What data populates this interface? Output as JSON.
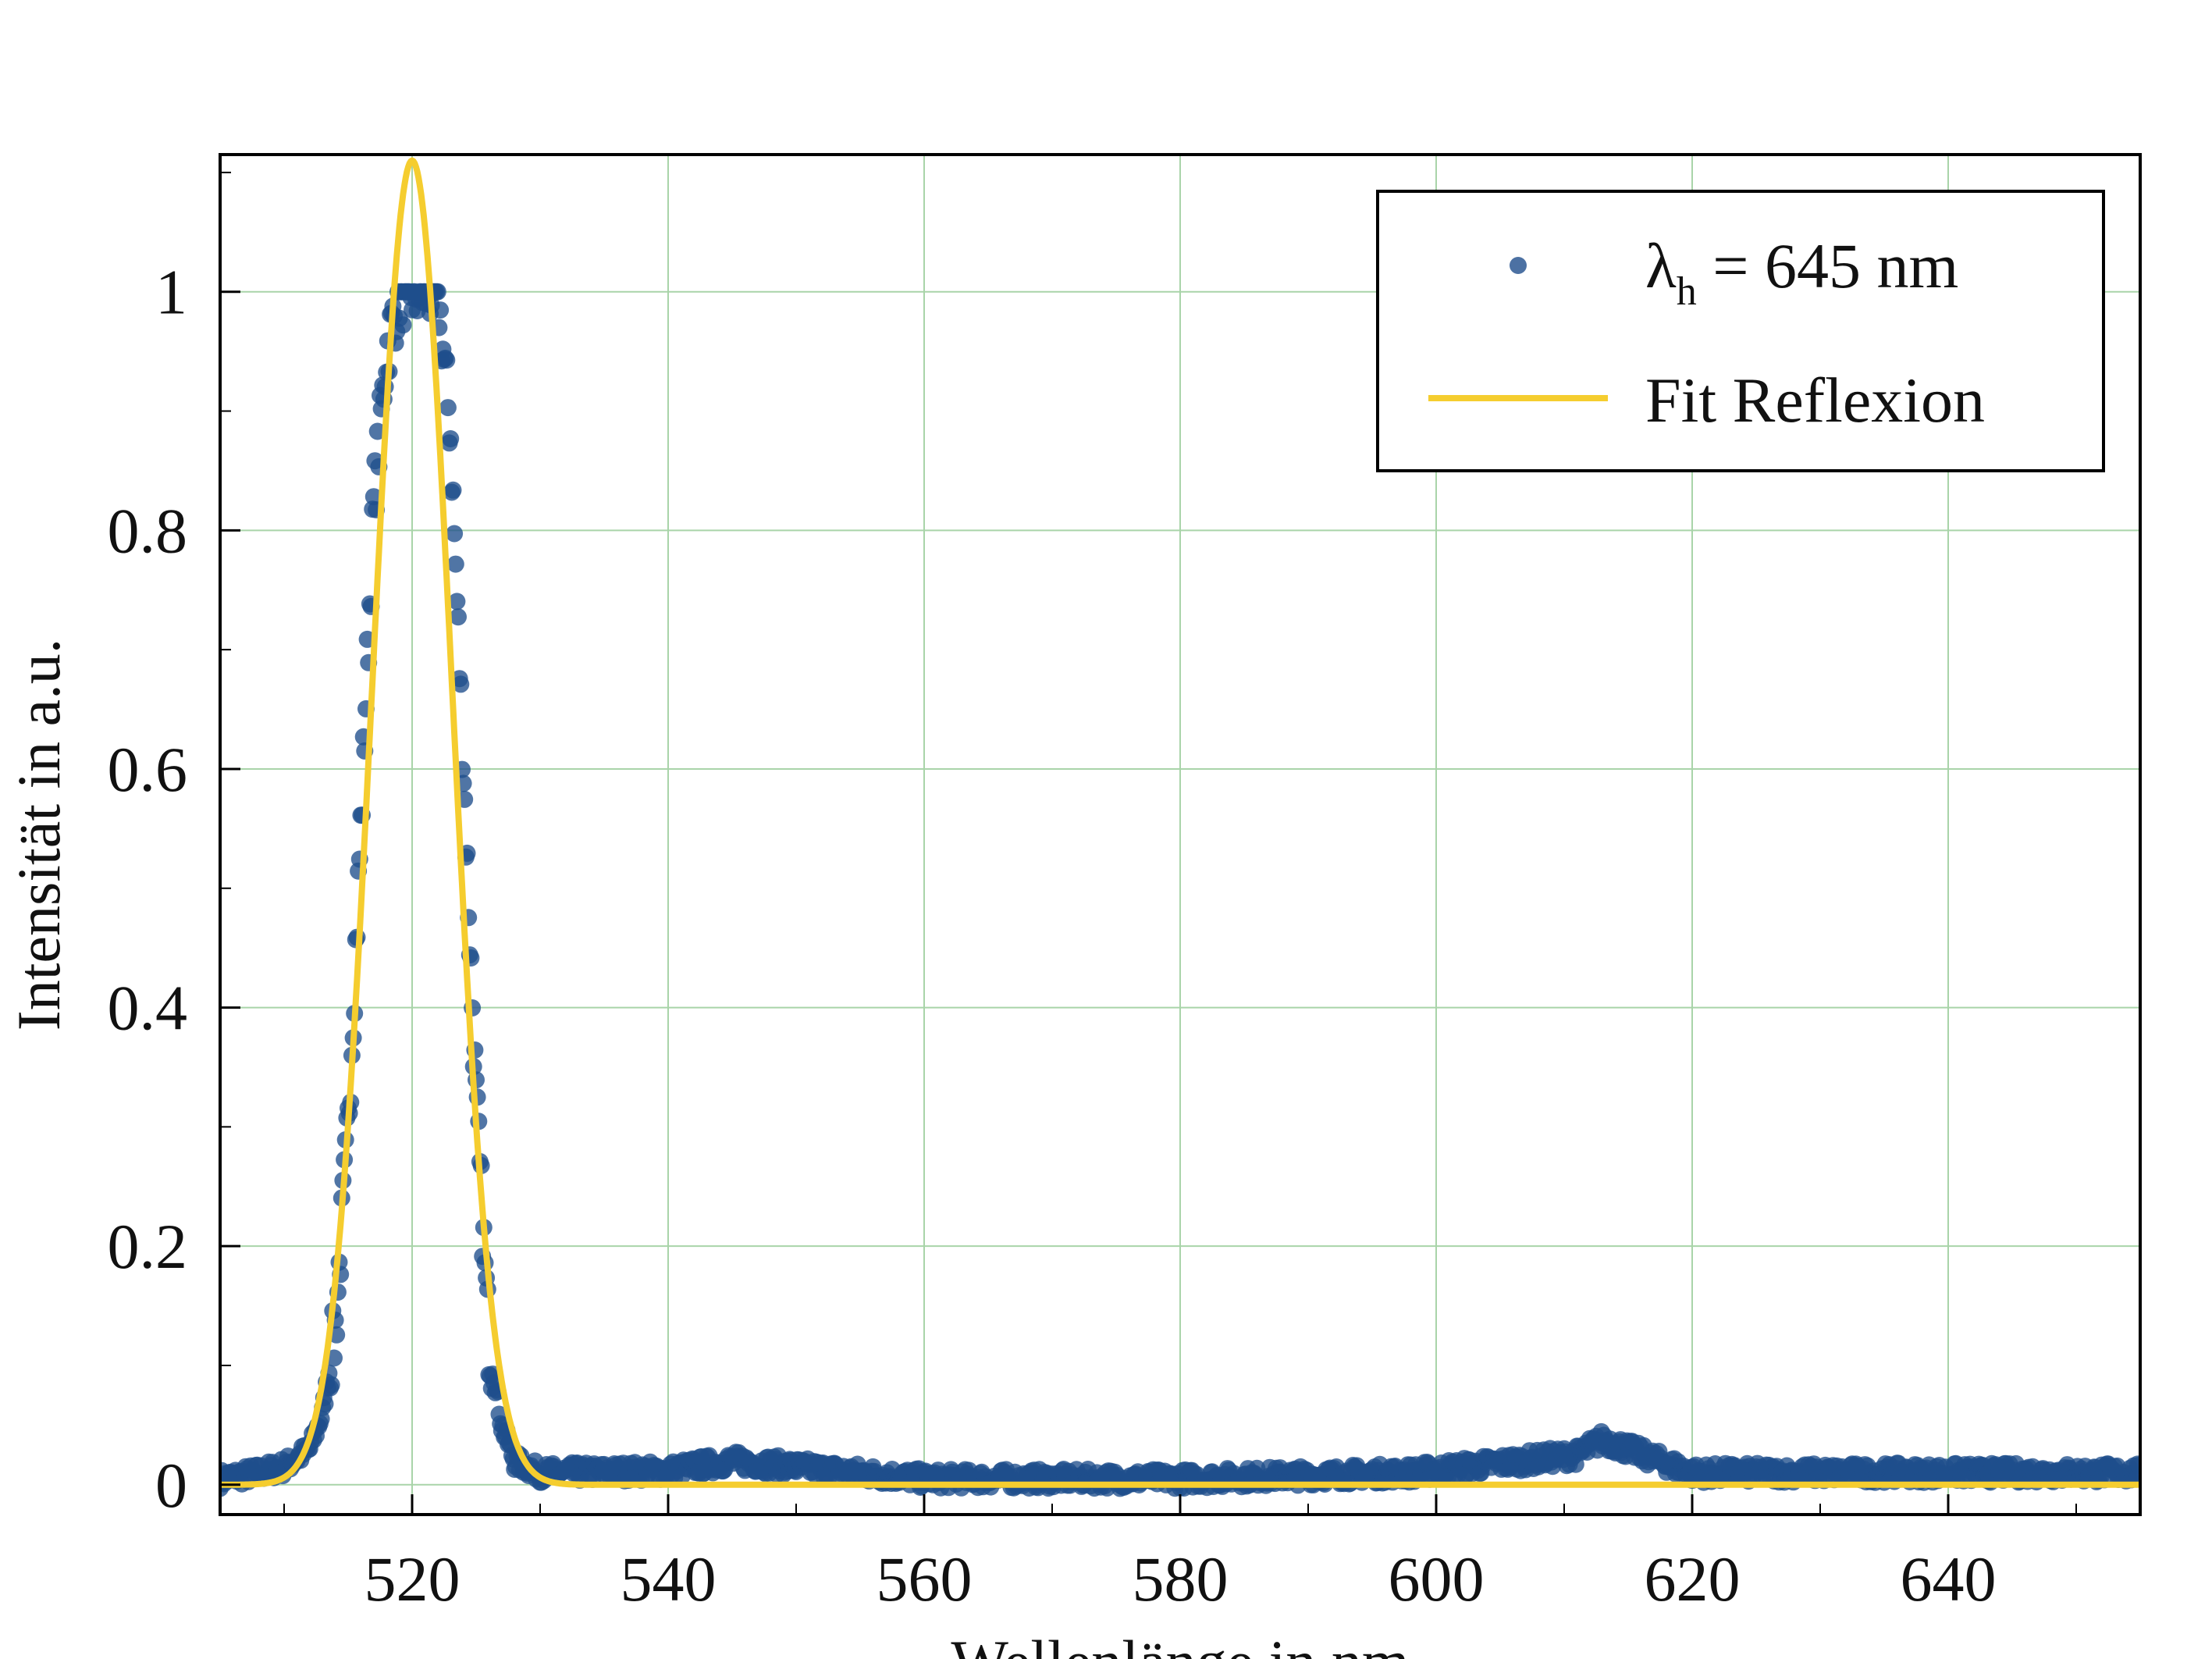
{
  "chart_data": {
    "type": "scatter",
    "title": "",
    "xlabel": "Wellenlänge in nm",
    "ylabel": "Intensität in  a.u.",
    "xlim": [
      505,
      655
    ],
    "ylim": [
      -0.025,
      1.115
    ],
    "xticks": [
      520,
      540,
      560,
      580,
      600,
      620,
      640
    ],
    "yticks": [
      0,
      0.2,
      0.4,
      0.6,
      0.8,
      1
    ],
    "ytick_labels": [
      "0",
      "0.2",
      "0.4",
      "0.6",
      "0.8",
      "1"
    ],
    "grid": true,
    "legend_position": "top-right",
    "legend": {
      "scatter_label_main": "λ",
      "scatter_label_sub": "h",
      "scatter_label_rest": " = 645 nm",
      "line_label": "Fit Reflexion"
    },
    "series": [
      {
        "name": "λh = 645 nm",
        "kind": "scatter",
        "color": "#1f4e8c",
        "peak_clip": 1.0,
        "measured_points": [
          [
            505,
            0.005
          ],
          [
            508,
            0.01
          ],
          [
            510,
            0.015
          ],
          [
            512,
            0.03
          ],
          [
            513,
            0.06
          ],
          [
            514,
            0.13
          ],
          [
            515,
            0.3
          ],
          [
            516,
            0.55
          ],
          [
            517,
            0.82
          ],
          [
            518,
            0.95
          ],
          [
            519,
            1.0
          ],
          [
            520,
            1.0
          ],
          [
            521,
            1.0
          ],
          [
            522,
            1.0
          ],
          [
            523,
            0.88
          ],
          [
            524,
            0.6
          ],
          [
            525,
            0.32
          ],
          [
            526,
            0.12
          ],
          [
            527,
            0.05
          ],
          [
            528,
            0.02
          ],
          [
            530,
            0.01
          ],
          [
            540,
            0.012
          ],
          [
            545,
            0.02
          ],
          [
            560,
            0.005
          ],
          [
            580,
            0.005
          ],
          [
            598,
            0.01
          ],
          [
            611,
            0.025
          ],
          [
            613,
            0.038
          ],
          [
            620,
            0.01
          ],
          [
            640,
            0.01
          ],
          [
            655,
            0.01
          ]
        ]
      },
      {
        "name": "Fit Reflexion",
        "kind": "line",
        "color": "#f5cd2f",
        "model": "gaussian",
        "amplitude": 1.11,
        "center": 520.0,
        "sigma": 3.1,
        "offset": 0.0
      }
    ]
  }
}
